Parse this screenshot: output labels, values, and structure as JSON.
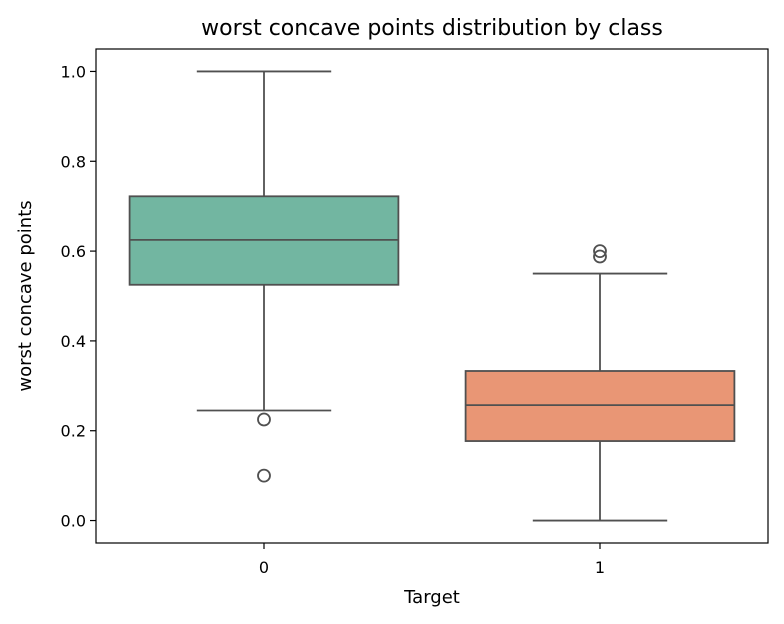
{
  "chart_data": {
    "type": "box",
    "title": "worst concave points distribution by class",
    "xlabel": "Target",
    "ylabel": "worst concave points",
    "ylim": [
      -0.05,
      1.05
    ],
    "yticks": [
      "0.0",
      "0.2",
      "0.4",
      "0.6",
      "0.8",
      "1.0"
    ],
    "grid": false,
    "legend": "none",
    "categories": [
      "0",
      "1"
    ],
    "boxes": [
      {
        "category": "0",
        "whisker_low": 0.245,
        "q1": 0.525,
        "median": 0.625,
        "q3": 0.722,
        "whisker_high": 1.0,
        "outliers": [
          0.225,
          0.1
        ],
        "color": "#72b6a1"
      },
      {
        "category": "1",
        "whisker_low": 0.0,
        "q1": 0.177,
        "median": 0.257,
        "q3": 0.333,
        "whisker_high": 0.55,
        "outliers": [
          0.6,
          0.588
        ],
        "color": "#e99675"
      }
    ],
    "line_color": "#505050"
  }
}
